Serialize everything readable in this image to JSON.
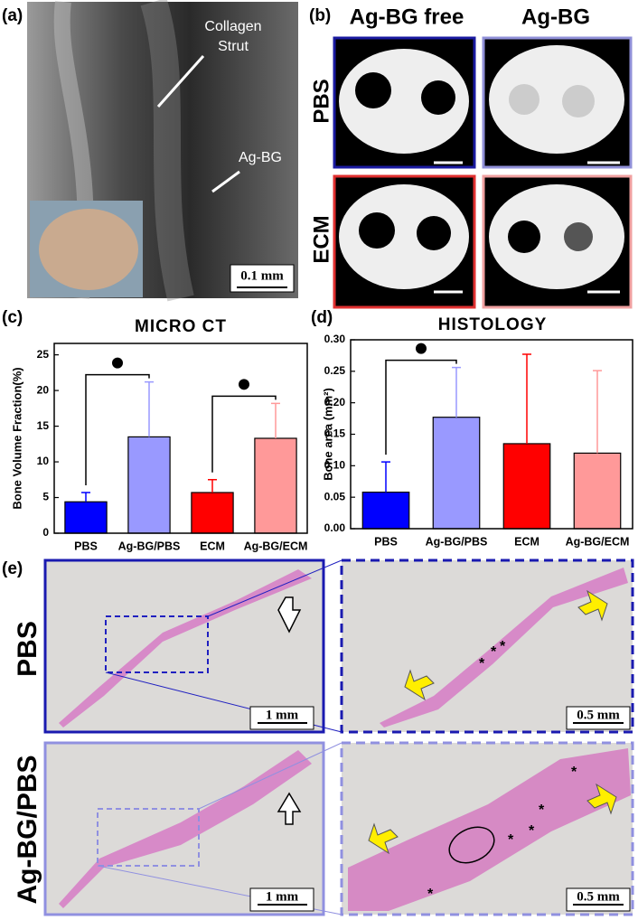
{
  "panel_labels": {
    "a": "(a)",
    "b": "(b)",
    "c": "(c)",
    "d": "(d)",
    "e": "(e)"
  },
  "panel_a": {
    "collagen_label": [
      "Collagen",
      "Strut"
    ],
    "agbg_label": "Ag-BG",
    "scale_bar": "0.1 mm"
  },
  "panel_b": {
    "columns": [
      "Ag-BG free",
      "Ag-BG"
    ],
    "rows": [
      "PBS",
      "ECM"
    ]
  },
  "panel_e": {
    "rows": [
      "PBS",
      "Ag-BG/PBS"
    ],
    "overview_scale_bar": "1 mm",
    "zoom_scale_bar": "0.5 mm",
    "top_markers": [
      "*",
      "*",
      "*"
    ],
    "bottom_markers": [
      "*",
      "*",
      "*",
      "*",
      "*"
    ]
  },
  "chart_data": [
    {
      "type": "bar",
      "title": "MICRO CT",
      "ylabel": "Bone Volume Fraction(%)",
      "categories": [
        "PBS",
        "Ag-BG/PBS",
        "ECM",
        "Ag-BG/ECM"
      ],
      "values": [
        4.4,
        13.5,
        5.7,
        13.3
      ],
      "errors": [
        1.3,
        7.7,
        1.8,
        4.9
      ],
      "colors": [
        "#0000ff",
        "#9999ff",
        "#ff0000",
        "#ff9999"
      ],
      "ylim": [
        0,
        26.6
      ],
      "yticks": [
        0,
        5,
        10,
        15,
        20,
        25
      ]
    },
    {
      "type": "bar",
      "title": "HISTOLOGY",
      "ylabel": "Bone area (mm²)",
      "categories": [
        "PBS",
        "Ag-BG/PBS",
        "ECM",
        "Ag-BG/ECM"
      ],
      "values": [
        0.058,
        0.177,
        0.135,
        0.12
      ],
      "errors": [
        0.048,
        0.079,
        0.142,
        0.131
      ],
      "colors": [
        "#0000ff",
        "#9999ff",
        "#ff0000",
        "#ff9999"
      ],
      "ylim": [
        0,
        0.3
      ],
      "yticks": [
        {
          "value": 0,
          "label": "0.00"
        },
        {
          "value": 0.05,
          "label": "0.05"
        },
        {
          "value": 0.1,
          "label": "0.10"
        },
        {
          "value": 0.15,
          "label": "0.15"
        },
        {
          "value": 0.2,
          "label": "0.20"
        },
        {
          "value": 0.25,
          "label": "0.25"
        },
        {
          "value": 0.3,
          "label": "0.30"
        }
      ]
    }
  ]
}
